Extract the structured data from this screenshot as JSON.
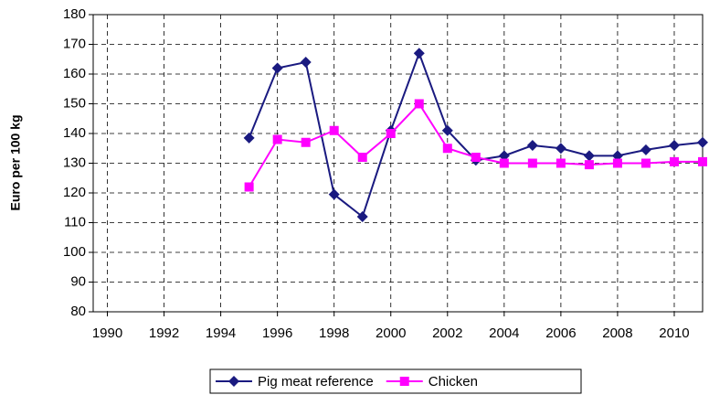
{
  "chart_data": {
    "type": "line",
    "y_label": "Euro per 100 kg",
    "x": [
      1995,
      1996,
      1997,
      1998,
      1999,
      2000,
      2001,
      2002,
      2003,
      2004,
      2005,
      2006,
      2007,
      2008,
      2009,
      2010,
      2011
    ],
    "series": [
      {
        "name": "Pig meat reference",
        "color": "#1a1a80",
        "marker": "diamond",
        "values": [
          138.5,
          162,
          164,
          119.5,
          112,
          141,
          167,
          141,
          131,
          132.5,
          136,
          135,
          132.5,
          132.5,
          134.5,
          136,
          137
        ]
      },
      {
        "name": "Chicken",
        "color": "#ff00ff",
        "marker": "square",
        "values": [
          122,
          138,
          137,
          141,
          132,
          140,
          150,
          135,
          132,
          130,
          130,
          130,
          129.5,
          130,
          130,
          130.5,
          130.5
        ]
      }
    ],
    "xlim": [
      1989.5,
      2011
    ],
    "xticks": [
      1990,
      1992,
      1994,
      1996,
      1998,
      2000,
      2002,
      2004,
      2006,
      2008,
      2010
    ],
    "ylim": [
      80,
      180
    ],
    "yticks": [
      80,
      90,
      100,
      110,
      120,
      130,
      140,
      150,
      160,
      170,
      180
    ],
    "grid": true,
    "legend": "bottom"
  }
}
